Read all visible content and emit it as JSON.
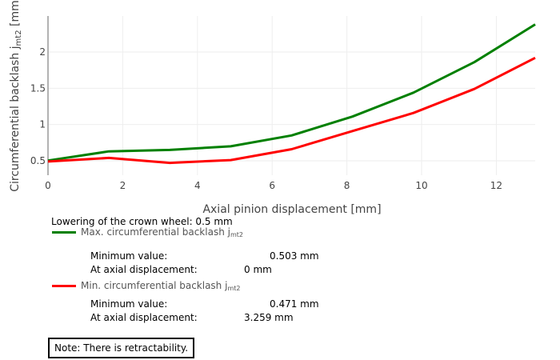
{
  "chart_data": {
    "type": "line",
    "title": "",
    "xlabel": "Axial pinion displacement [mm]",
    "ylabel": "Circumferential backlash j_mt2 [mm",
    "ylabel_main": "Circumferential backlash j",
    "ylabel_sub": "mt2",
    "ylabel_tail": " [mm",
    "xlim": [
      0,
      13.04
    ],
    "ylim": [
      0.4,
      2.5
    ],
    "grid": true,
    "x_ticks": [
      0,
      2,
      4,
      6,
      8,
      10,
      12
    ],
    "y_ticks": [
      0.5,
      1,
      1.5,
      2
    ],
    "y_tick_labels": [
      "0.5",
      "1",
      "1.5",
      "2"
    ],
    "x": [
      0,
      1.63,
      3.26,
      4.89,
      6.52,
      8.15,
      9.78,
      11.41,
      13.04
    ],
    "series": [
      {
        "name": "Max. circumferential backlash j_mt2",
        "color": "#008000",
        "values": [
          0.503,
          0.63,
          0.65,
          0.7,
          0.85,
          1.11,
          1.44,
          1.86,
          2.38
        ]
      },
      {
        "name": "Min. circumferential backlash j_mt2",
        "color": "#ff0000",
        "values": [
          0.49,
          0.54,
          0.471,
          0.51,
          0.66,
          0.91,
          1.16,
          1.49,
          1.92
        ]
      }
    ]
  },
  "info": {
    "lowering": "Lowering of the crown wheel: 0.5 mm",
    "max_legend_main": "Max. circumferential backlash j",
    "max_legend_sub": "mt2",
    "max_min_label": "Minimum value:",
    "max_min_value": "0.503 mm",
    "max_at_label": "At axial displacement:",
    "max_at_value": "0 mm",
    "min_legend_main": "Min. circumferential backlash j",
    "min_legend_sub": "mt2",
    "min_min_label": "Minimum value:",
    "min_min_value": "0.471 mm",
    "min_at_label": "At axial displacement:",
    "min_at_value": "3.259 mm",
    "note": "Note: There is retractability."
  },
  "colors": {
    "max": "#008000",
    "min": "#ff0000",
    "grid": "#eeeeee",
    "axis": "#999999"
  }
}
